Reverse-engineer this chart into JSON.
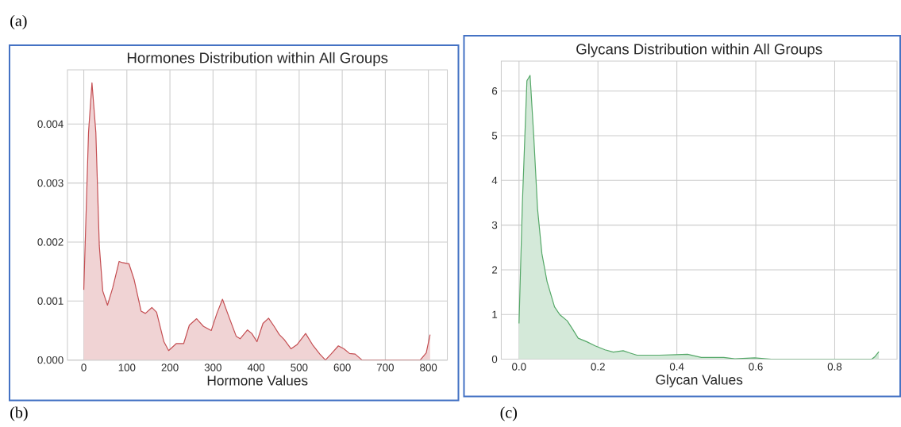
{
  "chart_data": [
    {
      "type": "area",
      "title": "Hormones Distribution within All Groups",
      "xlabel": "Hormone Values",
      "color": "#c44e52",
      "grid": true,
      "annotations": [
        "(a)",
        "(b)"
      ],
      "x": [
        0,
        11,
        19,
        28,
        36,
        44,
        55,
        67,
        82,
        90,
        105,
        117,
        133,
        143,
        158,
        169,
        186,
        197,
        215,
        232,
        245,
        262,
        278,
        296,
        309,
        322,
        334,
        354,
        363,
        380,
        390,
        402,
        416,
        429,
        442,
        454,
        465,
        481,
        495,
        515,
        531,
        548,
        561,
        574,
        591,
        604,
        617,
        630,
        646,
        679,
        781,
        795,
        804
      ],
      "values": [
        0.00119,
        0.00386,
        0.0047,
        0.00386,
        0.00194,
        0.00117,
        0.00093,
        0.00122,
        0.00167,
        0.00165,
        0.00163,
        0.00136,
        0.00083,
        0.00079,
        0.00089,
        0.00081,
        0.00031,
        0.00016,
        0.00028,
        0.00028,
        0.00059,
        0.0007,
        0.00057,
        0.0005,
        0.00079,
        0.00103,
        0.00079,
        0.0004,
        0.00036,
        0.00051,
        0.00045,
        0.00031,
        0.00062,
        0.00071,
        0.00057,
        0.00043,
        0.00035,
        0.00019,
        0.00026,
        0.00045,
        0.00026,
        0.0001,
        0,
        0.0001,
        0.00024,
        0.00019,
        0.00011,
        0.0001,
        0,
        0,
        0,
        0.00012,
        0.00043
      ],
      "xlim": [
        -38,
        844
      ],
      "ylim": [
        0,
        0.00492
      ],
      "xticks": [
        0,
        100,
        200,
        300,
        400,
        500,
        600,
        700,
        800
      ],
      "yticks": [
        {
          "value": 0,
          "label": "0.000"
        },
        {
          "value": 0.001,
          "label": "0.001"
        },
        {
          "value": 0.002,
          "label": "0.002"
        },
        {
          "value": 0.003,
          "label": "0.003"
        },
        {
          "value": 0.004,
          "label": "0.004"
        }
      ]
    },
    {
      "type": "area",
      "title": "Glycans Distribution within All Groups",
      "xlabel": "Glycan Values",
      "color": "#55a868",
      "grid": true,
      "annotations": [
        "(c)"
      ],
      "x": [
        0,
        0.0085,
        0.02,
        0.028,
        0.037,
        0.047,
        0.058,
        0.071,
        0.09,
        0.104,
        0.122,
        0.136,
        0.15,
        0.172,
        0.193,
        0.218,
        0.239,
        0.264,
        0.281,
        0.299,
        0.356,
        0.398,
        0.427,
        0.462,
        0.519,
        0.547,
        0.597,
        0.639,
        0.894,
        0.901,
        0.912
      ],
      "values": [
        0.8,
        3.48,
        6.23,
        6.35,
        5.04,
        3.36,
        2.36,
        1.74,
        1.17,
        0.99,
        0.86,
        0.67,
        0.47,
        0.39,
        0.3,
        0.21,
        0.16,
        0.19,
        0.14,
        0.09,
        0.09,
        0.1,
        0.11,
        0.04,
        0.04,
        0.01,
        0.03,
        0,
        0,
        0.05,
        0.17
      ],
      "xlim": [
        -0.045,
        0.958
      ],
      "ylim": [
        0,
        6.67
      ],
      "xticks": [
        {
          "value": 0,
          "label": "0.0"
        },
        0.2,
        0.4,
        0.6,
        0.8
      ],
      "yticks": [
        0,
        1,
        2,
        3,
        4,
        5,
        6
      ]
    }
  ]
}
